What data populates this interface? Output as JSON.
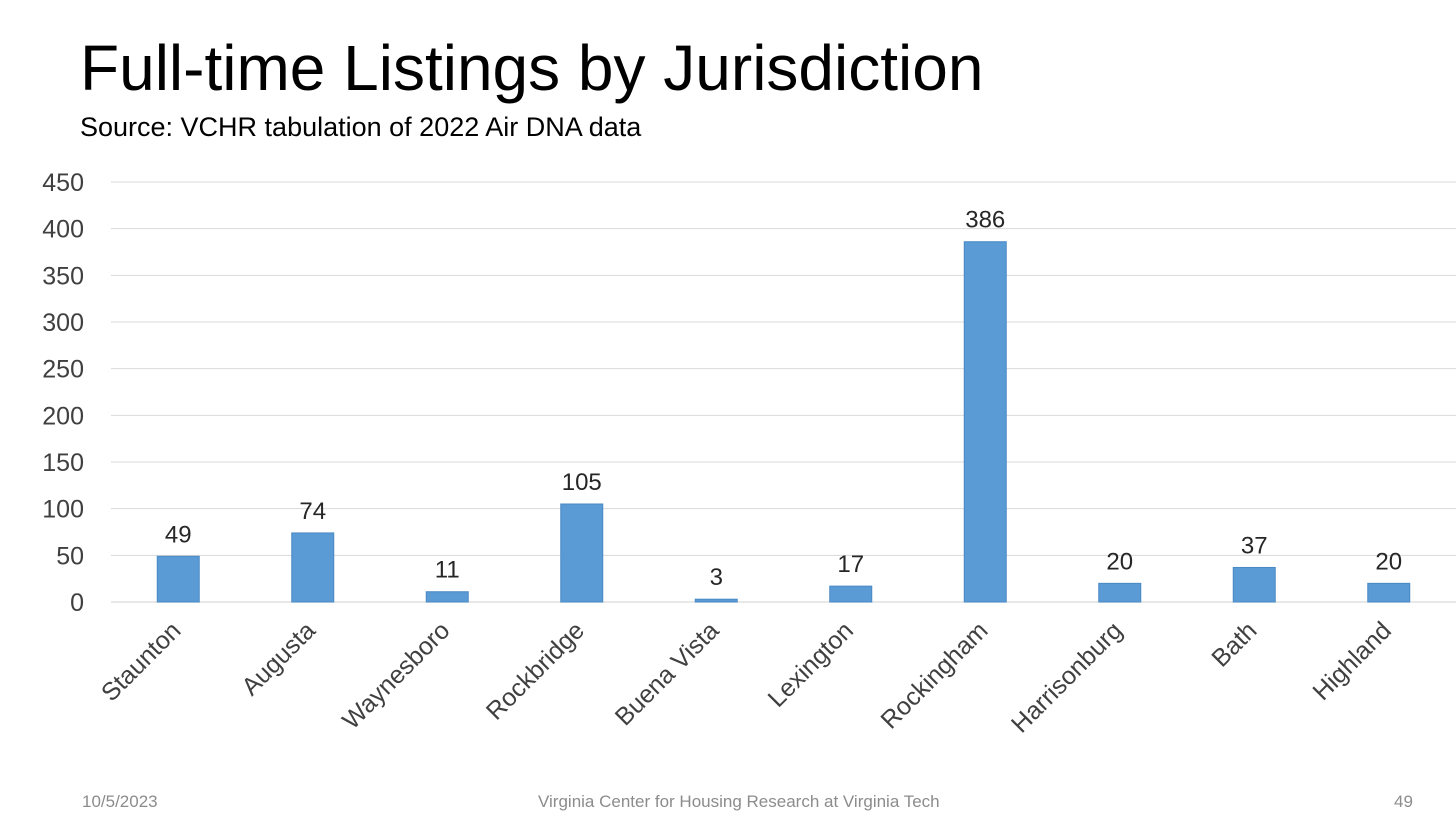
{
  "slide": {
    "title": "Full-time Listings by Jurisdiction",
    "subtitle": "Source: VCHR tabulation of 2022 Air DNA data"
  },
  "footer": {
    "date": "10/5/2023",
    "center": "Virginia Center for Housing Research at Virginia Tech",
    "page": "49"
  },
  "chart_data": {
    "type": "bar",
    "title": "",
    "xlabel": "",
    "ylabel": "",
    "categories": [
      "Staunton",
      "Augusta",
      "Waynesboro",
      "Rockbridge",
      "Buena Vista",
      "Lexington",
      "Rockingham",
      "Harrisonburg",
      "Bath",
      "Highland"
    ],
    "values": [
      49,
      74,
      11,
      105,
      3,
      17,
      386,
      20,
      37,
      20
    ],
    "ylim": [
      0,
      450
    ],
    "yticks": [
      0,
      50,
      100,
      150,
      200,
      250,
      300,
      350,
      400,
      450
    ],
    "grid": true,
    "legend": "none",
    "data_labels": true,
    "bar_color": "#5b9bd5",
    "bar_edge_color": "#4a8ac4",
    "grid_color": "#d9d9d9",
    "label_color": "#404040"
  }
}
